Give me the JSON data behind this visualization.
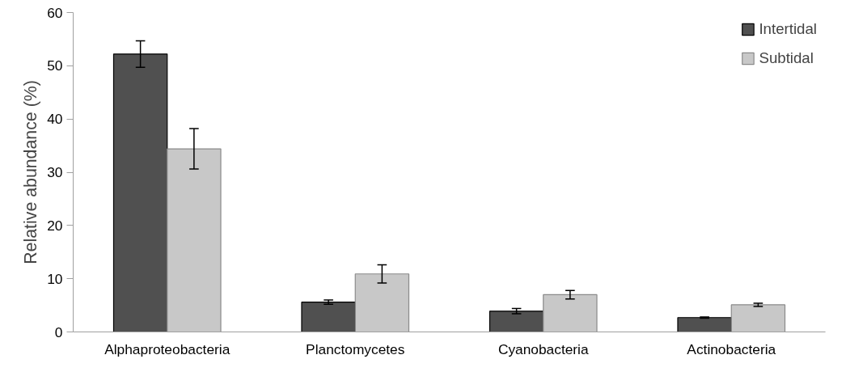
{
  "chart_data": {
    "type": "bar",
    "ylabel": "Relative abundance (%)",
    "categories": [
      "Alphaproteobacteria",
      "Planctomycetes",
      "Cyanobacteria",
      "Actinobacteria"
    ],
    "series": [
      {
        "name": "Intertidal",
        "color": "#505050",
        "values": [
          52.2,
          5.6,
          3.9,
          2.7
        ],
        "errors": [
          2.5,
          0.4,
          0.5,
          0.1
        ]
      },
      {
        "name": "Subtidal",
        "color": "#c8c8c8",
        "values": [
          34.4,
          10.9,
          7.0,
          5.1
        ],
        "errors": [
          3.8,
          1.7,
          0.8,
          0.3
        ]
      }
    ],
    "ylim": [
      0,
      60
    ],
    "yticks": [
      0,
      10,
      20,
      30,
      40,
      50,
      60
    ],
    "grid": false,
    "legend": "top right"
  }
}
